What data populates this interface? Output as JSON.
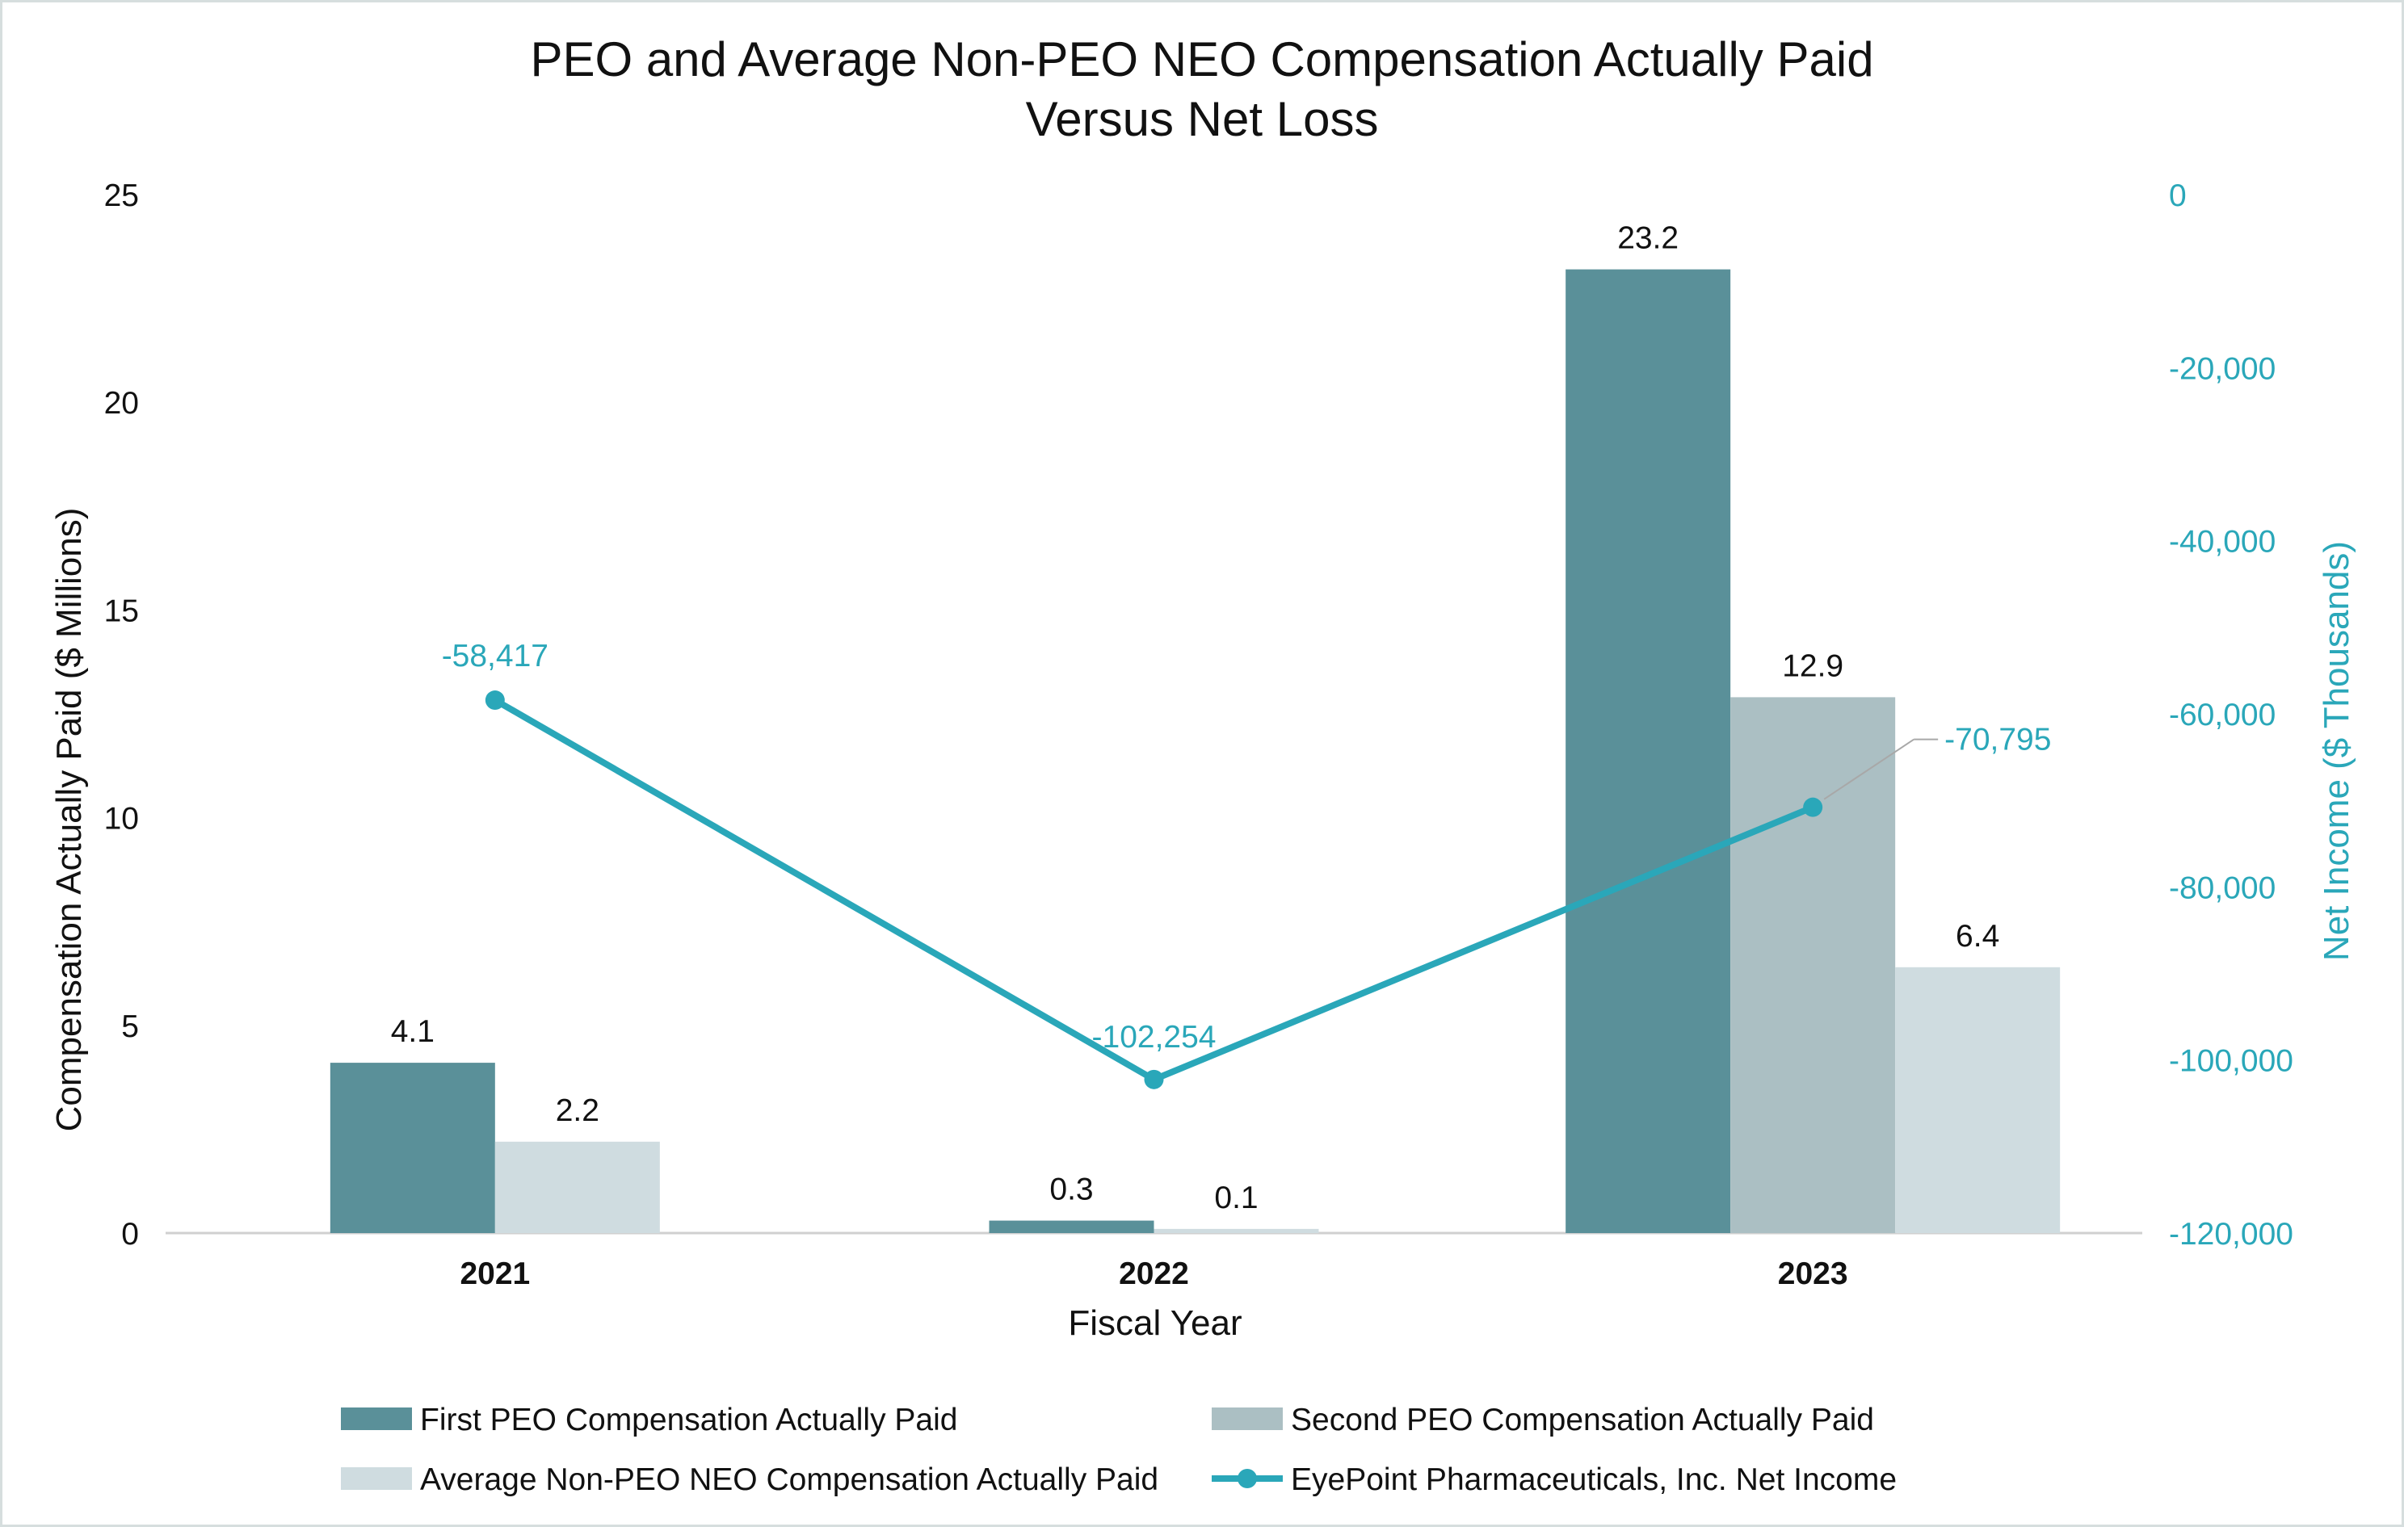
{
  "chart_data": {
    "type": "bar",
    "title_line1": "PEO and Average Non-PEO NEO Compensation Actually Paid",
    "title_line2": "Versus Net Loss",
    "xlabel": "Fiscal Year",
    "ylabel": "Compensation Actually Paid ($ Millions)",
    "y2label": "Net Income ($ Thousands)",
    "categories": [
      "2021",
      "2022",
      "2023"
    ],
    "ylim": [
      0,
      25
    ],
    "yticks": [
      0,
      5,
      10,
      15,
      20,
      25
    ],
    "y2lim": [
      -120000,
      0
    ],
    "y2ticks": [
      0,
      -20000,
      -40000,
      -60000,
      -80000,
      -100000,
      -120000
    ],
    "y2tick_labels": [
      "0",
      "-20,000",
      "-40,000",
      "-60,000",
      "-80,000",
      "-100,000",
      "-120,000"
    ],
    "series": [
      {
        "name": "First PEO Compensation Actually Paid",
        "kind": "bar",
        "axis": "left",
        "color": "#5a9099",
        "values": [
          4.1,
          0.3,
          23.2
        ],
        "labels": [
          "4.1",
          "0.3",
          "23.2"
        ]
      },
      {
        "name": "Second PEO Compensation Actually Paid",
        "kind": "bar",
        "axis": "left",
        "color": "#abbfc3",
        "values": [
          null,
          null,
          12.9
        ],
        "labels": [
          "",
          "",
          "12.9"
        ]
      },
      {
        "name": "Average Non-PEO NEO Compensation Actually Paid",
        "kind": "bar",
        "axis": "left",
        "color": "#cfdce0",
        "values": [
          2.2,
          0.1,
          6.4
        ],
        "labels": [
          "2.2",
          "0.1",
          "6.4"
        ]
      },
      {
        "name": "EyePoint Pharmaceuticals, Inc. Net Income",
        "kind": "line",
        "axis": "right",
        "color": "#2aa7b9",
        "values": [
          -58417,
          -102254,
          -70795
        ],
        "labels": [
          "-58,417",
          "-102,254",
          "-70,795"
        ]
      }
    ],
    "legend_position": "bottom"
  }
}
